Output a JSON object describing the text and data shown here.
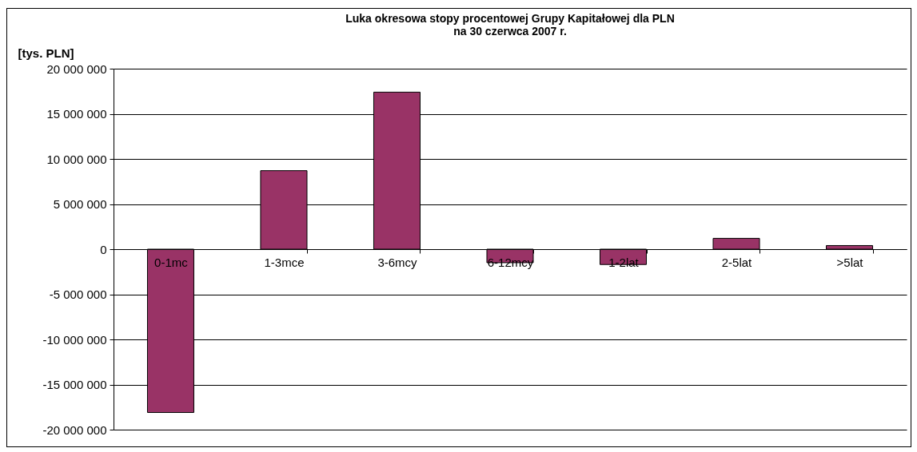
{
  "chart_data": {
    "type": "bar",
    "title": [
      "Luka okresowa stopy procentowej Grupy Kapitałowej dla PLN",
      "na 30 czerwca 2007 r."
    ],
    "ylabel": "[tys. PLN]",
    "categories": [
      "0-1mc",
      "1-3mce",
      "3-6mcy",
      "6-12mcy",
      "1-2lat",
      "2-5lat",
      ">5lat"
    ],
    "values": [
      -18100000,
      8700000,
      17400000,
      -1500000,
      -1700000,
      1200000,
      400000
    ],
    "color": "#993366",
    "ylim": [
      -20000000,
      20000000
    ],
    "yticks": [
      {
        "value": -20000000,
        "label": "-20 000 000"
      },
      {
        "value": -15000000,
        "label": "-15 000 000"
      },
      {
        "value": -10000000,
        "label": "-10 000 000"
      },
      {
        "value": -5000000,
        "label": "-5 000 000"
      },
      0,
      {
        "value": 5000000,
        "label": "5 000 000"
      },
      {
        "value": 10000000,
        "label": "10 000 000"
      },
      {
        "value": 15000000,
        "label": "15 000 000"
      },
      {
        "value": 20000000,
        "label": "20 000 000"
      }
    ],
    "grid": "y"
  }
}
